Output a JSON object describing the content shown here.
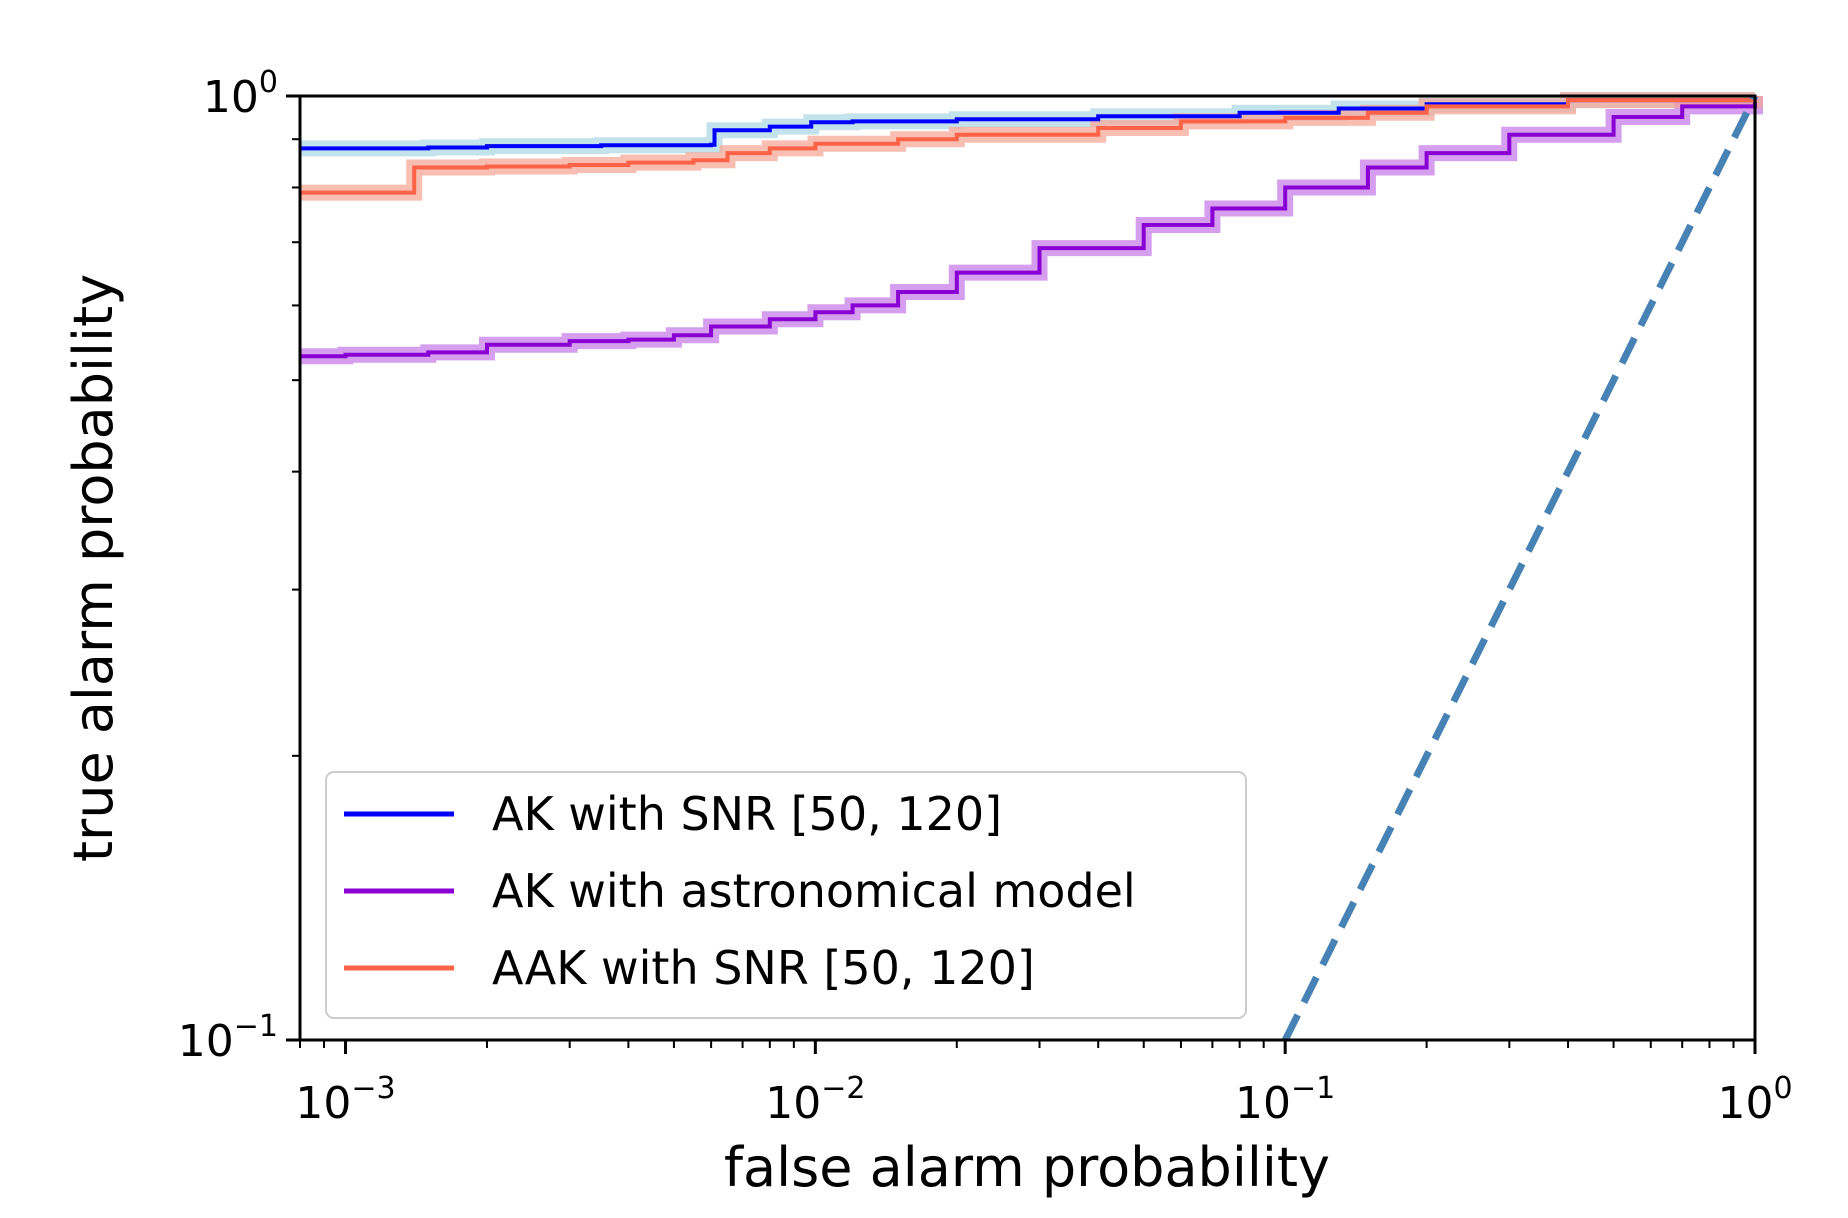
{
  "chart_data": {
    "type": "line",
    "title": "",
    "xlabel": "false alarm probability",
    "ylabel": "true alarm probability",
    "xscale": "log",
    "yscale": "log",
    "xlim": [
      0.0008,
      1.0
    ],
    "ylim": [
      0.1,
      1.0
    ],
    "xticks": [
      {
        "value": 0.001,
        "base": "10",
        "exp": "−3"
      },
      {
        "value": 0.01,
        "base": "10",
        "exp": "−2"
      },
      {
        "value": 0.1,
        "base": "10",
        "exp": "−1"
      },
      {
        "value": 1.0,
        "base": "10",
        "exp": "0"
      }
    ],
    "yticks": [
      {
        "value": 0.1,
        "base": "10",
        "exp": "−1"
      },
      {
        "value": 1.0,
        "base": "10",
        "exp": "0"
      }
    ],
    "legend_position": "lower-left",
    "series": [
      {
        "name": "AK with SNR [50, 120]",
        "color": "#0000ff",
        "band_color": "#add8e6",
        "style": "step",
        "x": [
          0.0008,
          0.0015,
          0.002,
          0.0035,
          0.006,
          0.0061,
          0.008,
          0.0098,
          0.012,
          0.02,
          0.04,
          0.08,
          0.13,
          0.2,
          0.4,
          1.0
        ],
        "y": [
          0.88,
          0.882,
          0.885,
          0.887,
          0.888,
          0.92,
          0.928,
          0.938,
          0.94,
          0.945,
          0.952,
          0.96,
          0.97,
          0.98,
          0.99,
          1.0
        ]
      },
      {
        "name": "AK with astronomical model",
        "color": "#8a00d4",
        "band_color": "#c77ee8",
        "style": "step",
        "x": [
          0.0008,
          0.001,
          0.0015,
          0.002,
          0.003,
          0.004,
          0.005,
          0.006,
          0.008,
          0.01,
          0.012,
          0.015,
          0.02,
          0.03,
          0.05,
          0.07,
          0.1,
          0.15,
          0.2,
          0.3,
          0.5,
          0.7,
          1.0
        ],
        "y": [
          0.53,
          0.532,
          0.535,
          0.545,
          0.55,
          0.552,
          0.558,
          0.57,
          0.58,
          0.59,
          0.6,
          0.62,
          0.65,
          0.69,
          0.73,
          0.76,
          0.8,
          0.84,
          0.87,
          0.91,
          0.95,
          0.975,
          1.0
        ]
      },
      {
        "name": "AAK with SNR [50, 120]",
        "color": "#ff6347",
        "band_color": "#f5a898",
        "style": "step",
        "x": [
          0.0008,
          0.0013,
          0.0014,
          0.002,
          0.003,
          0.004,
          0.0055,
          0.0065,
          0.008,
          0.01,
          0.015,
          0.02,
          0.04,
          0.06,
          0.1,
          0.15,
          0.2,
          0.4,
          1.0
        ],
        "y": [
          0.79,
          0.79,
          0.84,
          0.842,
          0.845,
          0.85,
          0.855,
          0.87,
          0.88,
          0.89,
          0.9,
          0.91,
          0.925,
          0.94,
          0.948,
          0.96,
          0.975,
          0.99,
          1.0
        ]
      },
      {
        "name": "",
        "color": "#4682b4",
        "style": "dashed",
        "x": [
          0.1,
          1.0
        ],
        "y": [
          0.1,
          1.0
        ]
      }
    ]
  }
}
